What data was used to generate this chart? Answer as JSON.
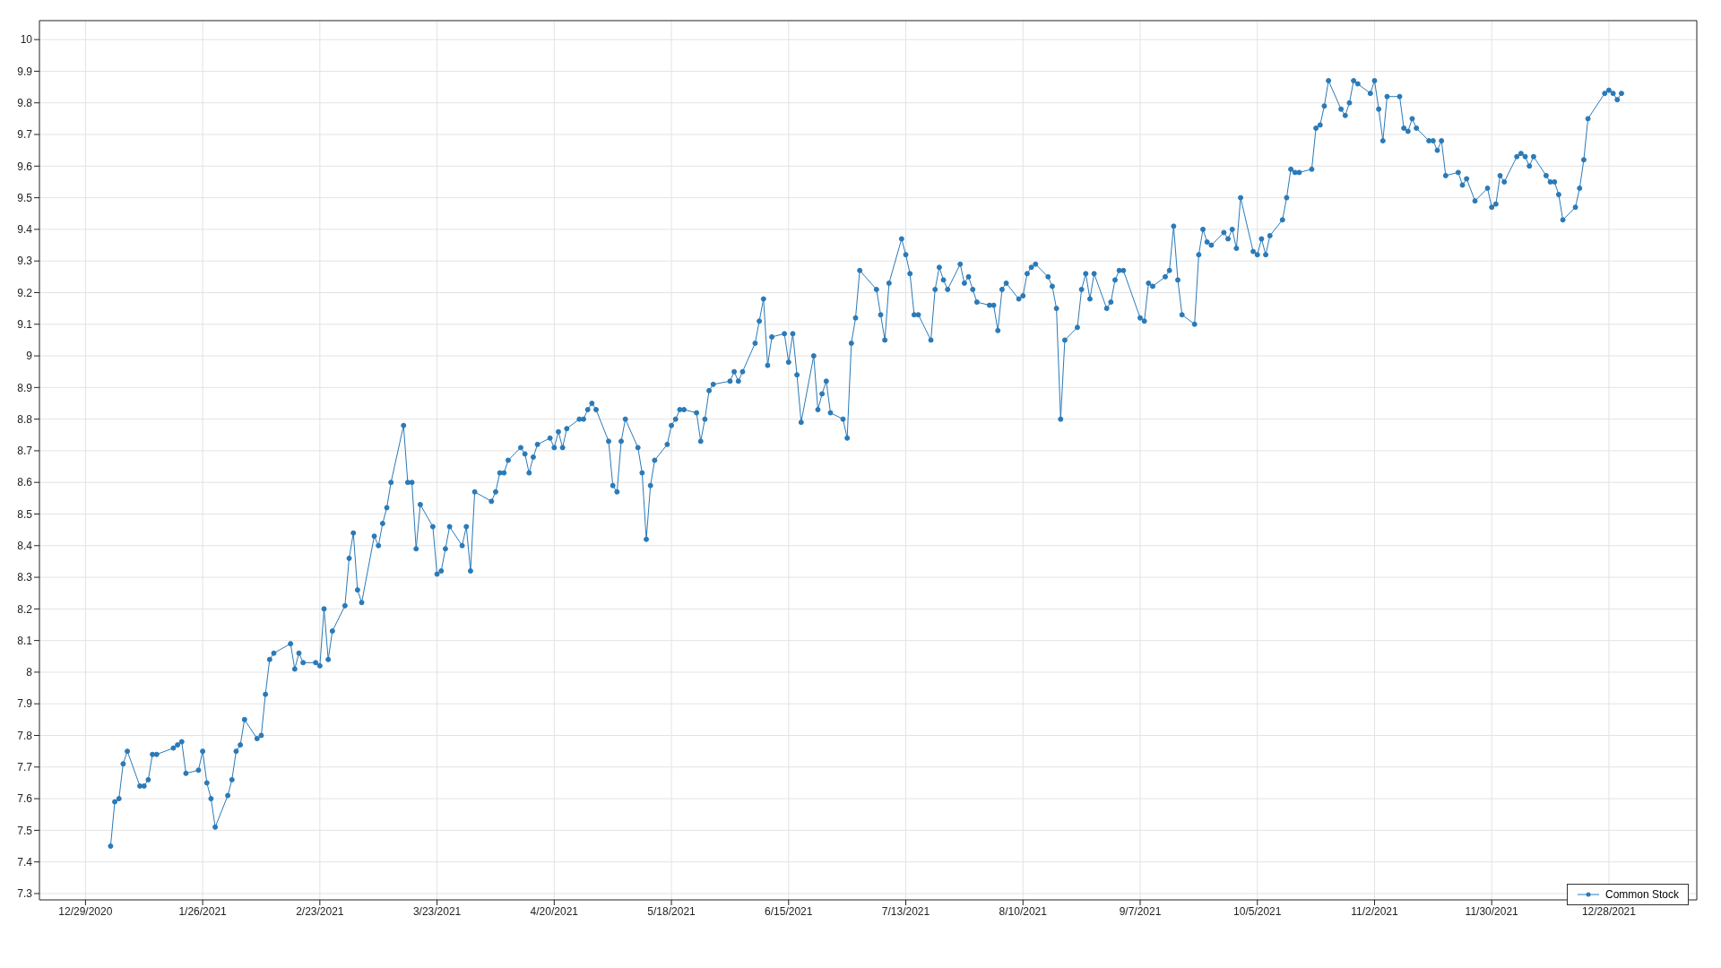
{
  "chart_data": {
    "type": "line",
    "x": [
      "2021-01-04",
      "2021-01-05",
      "2021-01-06",
      "2021-01-07",
      "2021-01-08",
      "2021-01-11",
      "2021-01-12",
      "2021-01-13",
      "2021-01-14",
      "2021-01-15",
      "2021-01-19",
      "2021-01-20",
      "2021-01-21",
      "2021-01-22",
      "2021-01-25",
      "2021-01-26",
      "2021-01-27",
      "2021-01-28",
      "2021-01-29",
      "2021-02-01",
      "2021-02-02",
      "2021-02-03",
      "2021-02-04",
      "2021-02-05",
      "2021-02-08",
      "2021-02-09",
      "2021-02-10",
      "2021-02-11",
      "2021-02-12",
      "2021-02-16",
      "2021-02-17",
      "2021-02-18",
      "2021-02-19",
      "2021-02-22",
      "2021-02-23",
      "2021-02-24",
      "2021-02-25",
      "2021-02-26",
      "2021-03-01",
      "2021-03-02",
      "2021-03-03",
      "2021-03-04",
      "2021-03-05",
      "2021-03-08",
      "2021-03-09",
      "2021-03-10",
      "2021-03-11",
      "2021-03-12",
      "2021-03-15",
      "2021-03-16",
      "2021-03-17",
      "2021-03-18",
      "2021-03-19",
      "2021-03-22",
      "2021-03-23",
      "2021-03-24",
      "2021-03-25",
      "2021-03-26",
      "2021-03-29",
      "2021-03-30",
      "2021-03-31",
      "2021-04-01",
      "2021-04-05",
      "2021-04-06",
      "2021-04-07",
      "2021-04-08",
      "2021-04-09",
      "2021-04-12",
      "2021-04-13",
      "2021-04-14",
      "2021-04-15",
      "2021-04-16",
      "2021-04-19",
      "2021-04-20",
      "2021-04-21",
      "2021-04-22",
      "2021-04-23",
      "2021-04-26",
      "2021-04-27",
      "2021-04-28",
      "2021-04-29",
      "2021-04-30",
      "2021-05-03",
      "2021-05-04",
      "2021-05-05",
      "2021-05-06",
      "2021-05-07",
      "2021-05-10",
      "2021-05-11",
      "2021-05-12",
      "2021-05-13",
      "2021-05-14",
      "2021-05-17",
      "2021-05-18",
      "2021-05-19",
      "2021-05-20",
      "2021-05-21",
      "2021-05-24",
      "2021-05-25",
      "2021-05-26",
      "2021-05-27",
      "2021-05-28",
      "2021-06-01",
      "2021-06-02",
      "2021-06-03",
      "2021-06-04",
      "2021-06-07",
      "2021-06-08",
      "2021-06-09",
      "2021-06-10",
      "2021-06-11",
      "2021-06-14",
      "2021-06-15",
      "2021-06-16",
      "2021-06-17",
      "2021-06-18",
      "2021-06-21",
      "2021-06-22",
      "2021-06-23",
      "2021-06-24",
      "2021-06-25",
      "2021-06-28",
      "2021-06-29",
      "2021-06-30",
      "2021-07-01",
      "2021-07-02",
      "2021-07-06",
      "2021-07-07",
      "2021-07-08",
      "2021-07-09",
      "2021-07-12",
      "2021-07-13",
      "2021-07-14",
      "2021-07-15",
      "2021-07-16",
      "2021-07-19",
      "2021-07-20",
      "2021-07-21",
      "2021-07-22",
      "2021-07-23",
      "2021-07-26",
      "2021-07-27",
      "2021-07-28",
      "2021-07-29",
      "2021-07-30",
      "2021-08-02",
      "2021-08-03",
      "2021-08-04",
      "2021-08-05",
      "2021-08-06",
      "2021-08-09",
      "2021-08-10",
      "2021-08-11",
      "2021-08-12",
      "2021-08-13",
      "2021-08-16",
      "2021-08-17",
      "2021-08-18",
      "2021-08-19",
      "2021-08-20",
      "2021-08-23",
      "2021-08-24",
      "2021-08-25",
      "2021-08-26",
      "2021-08-27",
      "2021-08-30",
      "2021-08-31",
      "2021-09-01",
      "2021-09-02",
      "2021-09-03",
      "2021-09-07",
      "2021-09-08",
      "2021-09-09",
      "2021-09-10",
      "2021-09-13",
      "2021-09-14",
      "2021-09-15",
      "2021-09-16",
      "2021-09-17",
      "2021-09-20",
      "2021-09-21",
      "2021-09-22",
      "2021-09-23",
      "2021-09-24",
      "2021-09-27",
      "2021-09-28",
      "2021-09-29",
      "2021-09-30",
      "2021-10-01",
      "2021-10-04",
      "2021-10-05",
      "2021-10-06",
      "2021-10-07",
      "2021-10-08",
      "2021-10-11",
      "2021-10-12",
      "2021-10-13",
      "2021-10-14",
      "2021-10-15",
      "2021-10-18",
      "2021-10-19",
      "2021-10-20",
      "2021-10-21",
      "2021-10-22",
      "2021-10-25",
      "2021-10-26",
      "2021-10-27",
      "2021-10-28",
      "2021-10-29",
      "2021-11-01",
      "2021-11-02",
      "2021-11-03",
      "2021-11-04",
      "2021-11-05",
      "2021-11-08",
      "2021-11-09",
      "2021-11-10",
      "2021-11-11",
      "2021-11-12",
      "2021-11-15",
      "2021-11-16",
      "2021-11-17",
      "2021-11-18",
      "2021-11-19",
      "2021-11-22",
      "2021-11-23",
      "2021-11-24",
      "2021-11-26",
      "2021-11-29",
      "2021-11-30",
      "2021-12-01",
      "2021-12-02",
      "2021-12-03",
      "2021-12-06",
      "2021-12-07",
      "2021-12-08",
      "2021-12-09",
      "2021-12-10",
      "2021-12-13",
      "2021-12-14",
      "2021-12-15",
      "2021-12-16",
      "2021-12-17",
      "2021-12-20",
      "2021-12-21",
      "2021-12-22",
      "2021-12-23",
      "2021-12-27",
      "2021-12-28",
      "2021-12-29",
      "2021-12-30",
      "2021-12-31"
    ],
    "series": [
      {
        "name": "Common Stock",
        "color": "#2a7ab8",
        "values": [
          7.45,
          7.59,
          7.6,
          7.71,
          7.75,
          7.64,
          7.64,
          7.66,
          7.74,
          7.74,
          7.76,
          7.77,
          7.78,
          7.68,
          7.69,
          7.75,
          7.65,
          7.6,
          7.51,
          7.61,
          7.66,
          7.75,
          7.77,
          7.85,
          7.79,
          7.8,
          7.93,
          8.04,
          8.06,
          8.09,
          8.01,
          8.06,
          8.03,
          8.03,
          8.02,
          8.2,
          8.04,
          8.13,
          8.21,
          8.36,
          8.44,
          8.26,
          8.22,
          8.43,
          8.4,
          8.47,
          8.52,
          8.6,
          8.78,
          8.6,
          8.6,
          8.39,
          8.53,
          8.46,
          8.31,
          8.32,
          8.39,
          8.46,
          8.4,
          8.46,
          8.32,
          8.57,
          8.54,
          8.57,
          8.63,
          8.63,
          8.67,
          8.71,
          8.69,
          8.63,
          8.68,
          8.72,
          8.74,
          8.71,
          8.76,
          8.71,
          8.77,
          8.8,
          8.8,
          8.83,
          8.85,
          8.83,
          8.73,
          8.59,
          8.57,
          8.73,
          8.8,
          8.71,
          8.63,
          8.42,
          8.59,
          8.67,
          8.72,
          8.78,
          8.8,
          8.83,
          8.83,
          8.82,
          8.73,
          8.8,
          8.89,
          8.91,
          8.92,
          8.95,
          8.92,
          8.95,
          9.04,
          9.11,
          9.18,
          8.97,
          9.06,
          9.07,
          8.98,
          9.07,
          8.94,
          8.79,
          9.0,
          8.83,
          8.88,
          8.92,
          8.82,
          8.8,
          8.74,
          9.04,
          9.12,
          9.27,
          9.21,
          9.13,
          9.05,
          9.23,
          9.37,
          9.32,
          9.26,
          9.13,
          9.13,
          9.05,
          9.21,
          9.28,
          9.24,
          9.21,
          9.29,
          9.23,
          9.25,
          9.21,
          9.17,
          9.16,
          9.16,
          9.08,
          9.21,
          9.23,
          9.18,
          9.19,
          9.26,
          9.28,
          9.29,
          9.25,
          9.22,
          9.15,
          8.8,
          9.05,
          9.09,
          9.21,
          9.26,
          9.18,
          9.26,
          9.15,
          9.17,
          9.24,
          9.27,
          9.27,
          9.12,
          9.11,
          9.23,
          9.22,
          9.25,
          9.27,
          9.41,
          9.24,
          9.13,
          9.1,
          9.32,
          9.4,
          9.36,
          9.35,
          9.39,
          9.37,
          9.4,
          9.34,
          9.5,
          9.33,
          9.32,
          9.37,
          9.32,
          9.38,
          9.43,
          9.5,
          9.59,
          9.58,
          9.58,
          9.59,
          9.72,
          9.73,
          9.79,
          9.87,
          9.78,
          9.76,
          9.8,
          9.87,
          9.86,
          9.83,
          9.87,
          9.78,
          9.68,
          9.82,
          9.82,
          9.72,
          9.71,
          9.75,
          9.72,
          9.68,
          9.68,
          9.65,
          9.68,
          9.57,
          9.58,
          9.54,
          9.56,
          9.49,
          9.53,
          9.47,
          9.48,
          9.57,
          9.55,
          9.63,
          9.64,
          9.63,
          9.6,
          9.63,
          9.57,
          9.55,
          9.55,
          9.51,
          9.43,
          9.47,
          9.53,
          9.62,
          9.75,
          9.83,
          9.84,
          9.83,
          9.81,
          9.83
        ]
      }
    ],
    "xlim": [
      "2020-12-18",
      "2022-01-18"
    ],
    "xticks": [
      {
        "value": "2020-12-29",
        "label": "12/29/2020"
      },
      {
        "value": "2021-01-26",
        "label": "1/26/2021"
      },
      {
        "value": "2021-02-23",
        "label": "2/23/2021"
      },
      {
        "value": "2021-03-23",
        "label": "3/23/2021"
      },
      {
        "value": "2021-04-20",
        "label": "4/20/2021"
      },
      {
        "value": "2021-05-18",
        "label": "5/18/2021"
      },
      {
        "value": "2021-06-15",
        "label": "6/15/2021"
      },
      {
        "value": "2021-07-13",
        "label": "7/13/2021"
      },
      {
        "value": "2021-08-10",
        "label": "8/10/2021"
      },
      {
        "value": "2021-09-07",
        "label": "9/7/2021"
      },
      {
        "value": "2021-10-05",
        "label": "10/5/2021"
      },
      {
        "value": "2021-11-02",
        "label": "11/2/2021"
      },
      {
        "value": "2021-11-30",
        "label": "11/30/2021"
      },
      {
        "value": "2021-12-28",
        "label": "12/28/2021"
      }
    ],
    "ylim": [
      7.28,
      10.06
    ],
    "yticks": [
      7.3,
      7.4,
      7.5,
      7.6,
      7.7,
      7.8,
      7.9,
      8,
      8.1,
      8.2,
      8.3,
      8.4,
      8.5,
      8.6,
      8.7,
      8.8,
      8.9,
      9,
      9.1,
      9.2,
      9.3,
      9.4,
      9.5,
      9.6,
      9.7,
      9.8,
      9.9,
      10
    ],
    "grid": true,
    "legend": "bottom right",
    "marker": "circle",
    "line_style": "solid"
  }
}
